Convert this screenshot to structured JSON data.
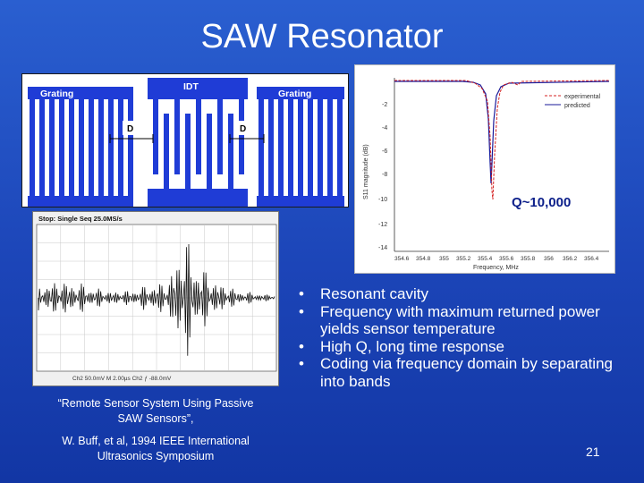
{
  "slide": {
    "title": "SAW Resonator",
    "page_number": "21"
  },
  "grating_diagram": {
    "label_left": "Grating",
    "label_center": "IDT",
    "label_right": "Grating",
    "gap_left": "D",
    "gap_right": "D"
  },
  "resonance_plot": {
    "ylabel": "S11 magnitude (dB)",
    "xlabel": "Frequency, MHz",
    "x_ticks": [
      "354.6",
      "354.8",
      "355",
      "355.2",
      "355.4",
      "355.6",
      "355.8",
      "356",
      "356.2",
      "356.4"
    ],
    "y_ticks": [
      "-2",
      "-4",
      "-6",
      "-8",
      "-10",
      "-12",
      "-14"
    ],
    "legend": [
      {
        "label": "experimental",
        "color": "#d42020"
      },
      {
        "label": "predicted",
        "color": "#1a1a9a"
      }
    ],
    "q_annotation": "Q~10,000"
  },
  "scope": {
    "header": "Stop: Single Seq  25.0MS/s",
    "footer": "Ch2  50.0mV    M 2.00µs  Ch2 ƒ  -88.0mV"
  },
  "citation": {
    "line1": "“Remote Sensor System Using Passive",
    "line2": "SAW Sensors”,",
    "line3": "W. Buff, et al, 1994 IEEE International",
    "line4": "Ultrasonics Symposium"
  },
  "bullets": [
    {
      "marker": "•",
      "text": "Resonant cavity"
    },
    {
      "marker": "•",
      "text": "Frequency with maximum returned power yields sensor temperature"
    },
    {
      "marker": "•",
      "text": "High Q, long time response"
    },
    {
      "marker": "•",
      "text": "Coding via frequency domain by separating into bands"
    }
  ]
}
